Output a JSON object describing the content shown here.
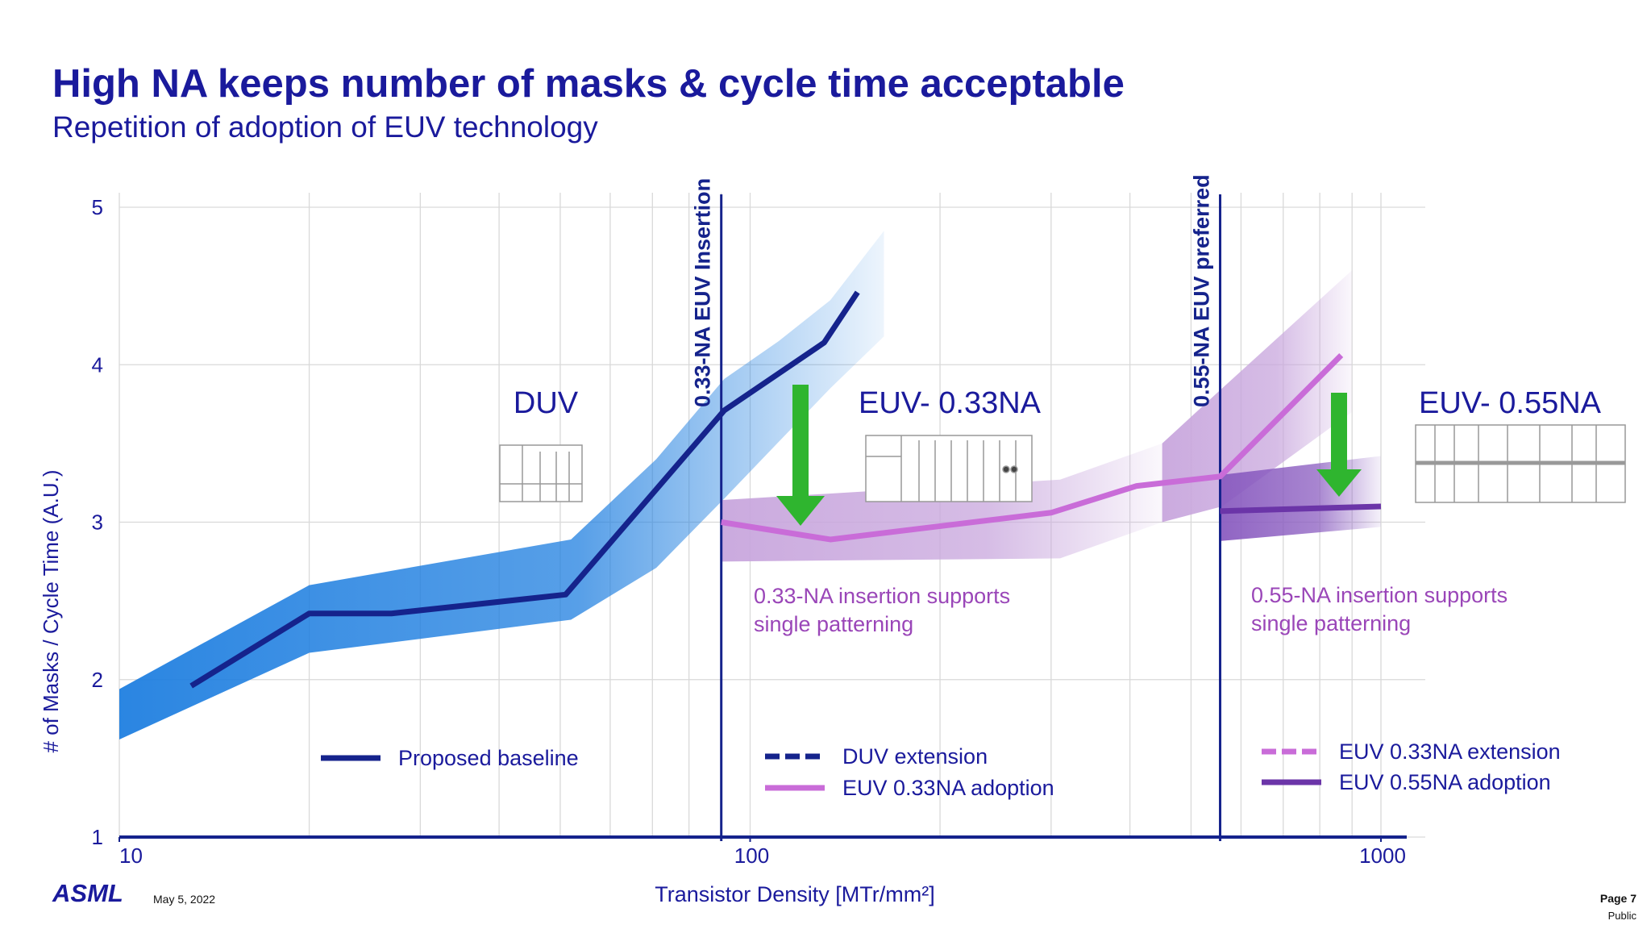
{
  "chart_data": {
    "type": "line",
    "title": "High NA keeps number of masks & cycle time acceptable",
    "subtitle": "Repetition of adoption of EUV technology",
    "x_label": "Transistor Density [MTr/mm²]",
    "y_label": "# of Masks / Cycle Time (A.U.)",
    "xscale": "log",
    "xlim": [
      10,
      1000
    ],
    "xticks": [
      10,
      100,
      1000
    ],
    "xgrid": [
      10,
      20,
      30,
      40,
      50,
      60,
      70,
      80,
      90,
      100,
      200,
      300,
      400,
      500,
      600,
      700,
      800,
      900,
      1000
    ],
    "ylim": [
      1,
      5
    ],
    "yticks": [
      1,
      2,
      3,
      4,
      5
    ],
    "grid": true,
    "series": [
      {
        "name": "Proposed baseline",
        "color": "#15238c",
        "dash": false,
        "x": [
          13,
          20,
          27,
          51,
          91,
          131,
          148
        ],
        "values": [
          1.96,
          2.42,
          2.42,
          2.54,
          3.71,
          4.14,
          4.46
        ]
      },
      {
        "name": "DUV extension",
        "color": "#15238c",
        "dash": true,
        "x": [],
        "values": []
      },
      {
        "name": "EUV 0.33NA adoption",
        "color": "#c96cd8",
        "dash": false,
        "x": [
          90,
          134,
          300,
          410,
          556,
          865
        ],
        "values": [
          3.0,
          2.89,
          3.06,
          3.23,
          3.29,
          4.06
        ]
      },
      {
        "name": "EUV 0.33NA extension",
        "color": "#c96cd8",
        "dash": true,
        "x": [],
        "values": []
      },
      {
        "name": "EUV 0.55NA adoption",
        "color": "#6b35a8",
        "dash": false,
        "x": [
          556,
          1000
        ],
        "values": [
          3.07,
          3.1
        ]
      }
    ],
    "bands": [
      {
        "color": "#1f7fe0",
        "x": [
          10,
          20,
          52,
          71,
          91,
          111,
          134,
          163
        ],
        "lower": [
          1.62,
          2.17,
          2.38,
          2.71,
          3.15,
          3.51,
          3.85,
          4.18
        ],
        "upper": [
          1.94,
          2.6,
          2.89,
          3.4,
          3.91,
          4.15,
          4.41,
          4.85
        ]
      },
      {
        "color": "#c8a6dd",
        "x": [
          90,
          310,
          450
        ],
        "lower": [
          2.75,
          2.77,
          3.0
        ],
        "upper": [
          3.14,
          3.27,
          3.5
        ]
      },
      {
        "color": "#c8a6dd",
        "x": [
          450,
          560,
          900
        ],
        "lower": [
          3.0,
          3.1,
          3.7
        ],
        "upper": [
          3.5,
          3.85,
          4.6
        ]
      },
      {
        "color": "#8a5cc0",
        "x": [
          556,
          1000
        ],
        "lower": [
          2.88,
          2.97
        ],
        "upper": [
          3.3,
          3.42
        ]
      }
    ],
    "vlines": [
      {
        "x": 90,
        "label": "0.33-NA EUV Insertion",
        "color": "#15238c"
      },
      {
        "x": 556,
        "label": "0.55-NA EUV preferred",
        "color": "#15238c"
      }
    ],
    "annotations": [
      "DUV",
      "EUV- 0.33NA",
      "EUV- 0.55NA"
    ],
    "notes": [
      {
        "lines": [
          "0.33-NA insertion supports",
          "single patterning"
        ],
        "color": "#9a46b8"
      },
      {
        "lines": [
          "0.55-NA insertion supports",
          "single patterning"
        ],
        "color": "#9a46b8"
      }
    ]
  },
  "footer": {
    "logo": "ASML",
    "date": "May 5, 2022",
    "page": "Page 7",
    "classification": "Public"
  }
}
